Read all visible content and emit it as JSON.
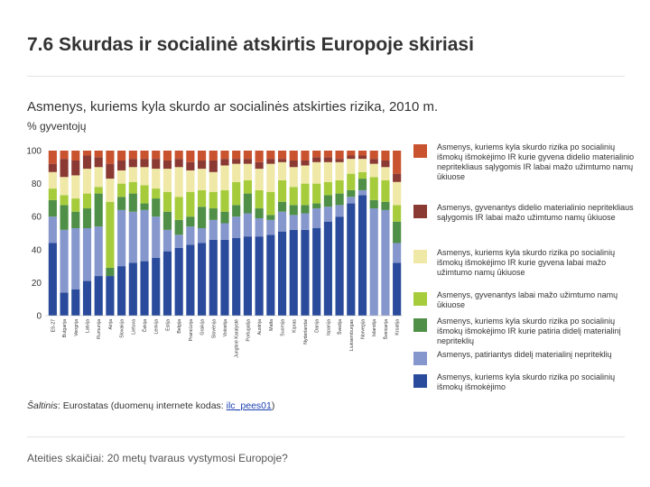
{
  "title": {
    "number": "7.6",
    "text": "Skurdas ir socialinė atskirtis Europoje skiriasi"
  },
  "subtitle": "Asmenys, kuriems kyla skurdo ar socialinės atskirties rizika, 2010 m.",
  "unit": "% gyventojų",
  "source": {
    "label": "Šaltinis",
    "text": ": Eurostatas (duomenų internete kodas: ",
    "link": "ilc_pees01",
    "tail": ")"
  },
  "footer": "Ateities skaičiai: 20 metų tvaraus vystymosi Europoje?",
  "colors": {
    "blue": "#2a4b9b",
    "lightblue": "#8597cc",
    "green": "#4f8f47",
    "lightgreen": "#a6cc3c",
    "cream": "#f0e8a6",
    "brown": "#8b3a33",
    "red": "#c9532f"
  },
  "legend": [
    {
      "color": "#c9532f",
      "text": "Asmenys, kuriems kyla skurdo rizika po socialinių išmokų išmokėjimo IR kurie gyvena didelio materialinio nepritekliaus sąlygomis IR labai mažo užimtumo namų ūkiuose"
    },
    {
      "color": "#8b3a33",
      "text": "Asmenys, gyvenantys didelio materialinio nepritekliaus sąlygomis IR labai mažo užimtumo namų ūkiuose"
    },
    {
      "color": "#f0e8a6",
      "text": "Asmenys, kuriems kyla skurdo rizika po socialinių išmokų išmokėjimo IR kurie gyvena labai mažo užimtumo namų ūkiuose"
    },
    {
      "color": "#a6cc3c",
      "text": "Asmenys, gyvenantys labai mažo užimtumo namų ūkiuose"
    },
    {
      "color": "#4f8f47",
      "text": "Asmenys, kuriems kyla skurdo rizika po socialinių išmokų išmokėjimo IR kurie patiria didelį materialinį nepriteklių"
    },
    {
      "color": "#8597cc",
      "text": "Asmenys, patiriantys didelį materialinį nepriteklių"
    },
    {
      "color": "#2a4b9b",
      "text": "Asmenys, kuriems kyla skurdo rizika po socialinių išmokų išmokėjimo"
    }
  ],
  "chart_data": {
    "type": "bar",
    "stacked": true,
    "ylim": [
      0,
      100
    ],
    "yticks": [
      "0",
      "20",
      "40",
      "60",
      "80",
      "100"
    ],
    "categories": [
      "ES-27",
      "Bulgarija",
      "Vengrija",
      "Latvija",
      "Rumunija",
      "Airija",
      "Slovakija",
      "Lietuva",
      "Čekija",
      "Lenkija",
      "Estija",
      "Belgija",
      "Prancūzija",
      "Graikija",
      "Slovėnija",
      "Vokietija",
      "Jungtinė Karalystė",
      "Portugalija",
      "Austrija",
      "Malta",
      "Suomija",
      "Kipras",
      "Nyderlandai",
      "Danija",
      "Ispanija",
      "Švedija",
      "Liuksemburgas",
      "Norvegija",
      "Islandija",
      "Šveicarija",
      "Kroatija"
    ],
    "series": [
      {
        "name": "Asmenys, kuriems kyla skurdo rizika po socialinių išmokų išmokėjimo",
        "color": "#2a4b9b",
        "values": [
          44,
          14,
          16,
          21,
          24,
          24,
          30,
          32,
          33,
          35,
          39,
          41,
          43,
          44,
          46,
          46,
          47,
          48,
          48,
          49,
          51,
          52,
          52,
          53,
          57,
          60,
          68,
          73,
          0,
          0,
          32
        ]
      },
      {
        "name": "Asmenys, patiriantys didelį materialinį nepriteklių",
        "color": "#8597cc",
        "values": [
          16,
          38,
          37,
          32,
          30,
          0,
          34,
          31,
          31,
          25,
          13,
          8,
          11,
          9,
          12,
          10,
          13,
          14,
          11,
          9,
          12,
          9,
          10,
          12,
          9,
          7,
          4,
          3,
          65,
          64,
          12
        ]
      },
      {
        "name": "Asmenys, kuriems kyla skurdo rizika po socialinių išmokų išmokėjimo IR kurie patiria didelį materialinį nepriteklių",
        "color": "#4f8f47",
        "values": [
          10,
          15,
          10,
          12,
          20,
          5,
          8,
          11,
          4,
          11,
          11,
          9,
          6,
          13,
          7,
          7,
          7,
          12,
          6,
          3,
          6,
          6,
          5,
          3,
          7,
          7,
          4,
          7,
          5,
          5,
          13
        ]
      },
      {
        "name": "Asmenys, gyvenantys labai mažo užimtumo namų ūkiuose",
        "color": "#a6cc3c",
        "values": [
          7,
          6,
          8,
          9,
          4,
          40,
          8,
          7,
          11,
          6,
          12,
          14,
          15,
          10,
          10,
          13,
          14,
          8,
          11,
          14,
          13,
          11,
          13,
          12,
          8,
          8,
          10,
          4,
          14,
          13,
          10
        ]
      },
      {
        "name": "Asmenys, kuriems kyla skurdo rizika po socialinių išmokų išmokėjimo IR kurie gyvena labai mažo užimtumo namų ūkiuose",
        "color": "#f0e8a6",
        "values": [
          10,
          11,
          14,
          15,
          12,
          14,
          8,
          9,
          11,
          12,
          14,
          18,
          13,
          13,
          12,
          15,
          11,
          10,
          13,
          17,
          11,
          12,
          11,
          13,
          12,
          11,
          9,
          8,
          8,
          8,
          14
        ]
      },
      {
        "name": "Asmenys, gyvenantys didelio materialinio nepritekliaus sąlygomis IR labai mažo užimtumo namų ūkiuose",
        "color": "#8b3a33",
        "values": [
          5,
          11,
          9,
          8,
          6,
          9,
          6,
          5,
          5,
          6,
          5,
          5,
          5,
          5,
          7,
          4,
          3,
          3,
          4,
          3,
          2,
          4,
          3,
          3,
          3,
          2,
          2,
          2,
          3,
          4,
          5
        ]
      },
      {
        "name": "Asmenys, kuriems kyla skurdo rizika po socialinių išmokų išmokėjimo IR kurie gyvena didelio materialinio nepritekliaus sąlygomis IR labai mažo užimtumo namų ūkiuose",
        "color": "#c9532f",
        "values": [
          8,
          5,
          6,
          3,
          4,
          8,
          6,
          5,
          5,
          5,
          6,
          5,
          7,
          6,
          6,
          5,
          5,
          5,
          7,
          5,
          5,
          6,
          6,
          4,
          4,
          5,
          3,
          3,
          5,
          6,
          14
        ]
      }
    ]
  }
}
